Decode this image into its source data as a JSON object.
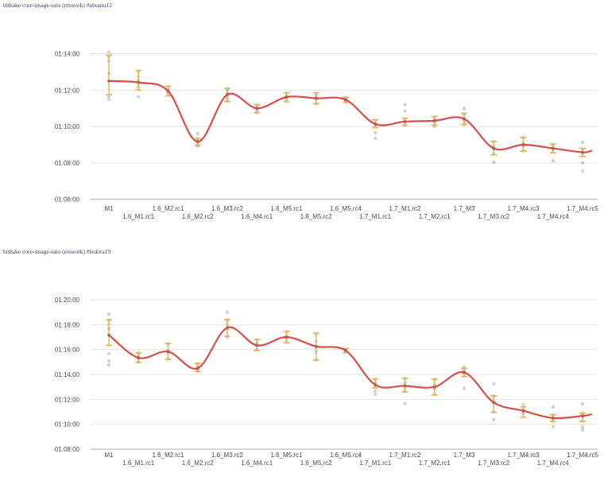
{
  "colors": {
    "trend_line": "#d8453e",
    "error_bar": "#e2b44e",
    "sample_dot": "#909090",
    "mean_dot": "#7f7f7f",
    "gridline": "#e2e2e2",
    "axis_line": "#adadad",
    "tick_text": "#4d4d4d",
    "title_text": "#3d3d5e"
  },
  "chart_data": [
    {
      "type": "scatter",
      "title": "bitbake core-image-sato (rmwork) #ubuntu12",
      "trend": "smoothed mean line",
      "grid": "horizontal",
      "legend_position": "none",
      "xlabel": "",
      "ylabel": "",
      "ylim": [
        "01:06:00",
        "01:14:00"
      ],
      "yticks": [
        "01:14:00",
        "01:12:00",
        "01:10:00",
        "01:08:00",
        "01:06:00"
      ],
      "categories": [
        "M1",
        "1.6_M1.rc1",
        "1.6_M2.rc1",
        "1.6_M2.rc2",
        "1.6_M3.rc2",
        "1.6_M4.rc1",
        "1.6_M5.rc1",
        "1.6_M5.rc2",
        "1.6_M5.rc4",
        "1.7_M1.rc1",
        "1.7_M1.rc2",
        "1.7_M2.rc1",
        "1.7_M3",
        "1.7_M3.rc2",
        "1.7_M4.rc3",
        "1.7_M4.rc4",
        "1.7_M4.rc5"
      ],
      "series": [
        {
          "name": "mean",
          "values": [
            "01:12:30",
            "01:12:25",
            "01:11:57",
            "01:09:10",
            "01:11:45",
            "01:11:00",
            "01:11:37",
            "01:11:33",
            "01:11:28",
            "01:10:08",
            "01:10:16",
            "01:10:19",
            "01:10:25",
            "01:08:48",
            "01:09:00",
            "01:08:48",
            "01:08:35"
          ]
        },
        {
          "name": "error_low",
          "values": [
            "01:11:45",
            "01:12:00",
            "01:11:41",
            "01:08:57",
            "01:11:22",
            "01:10:46",
            "01:11:22",
            "01:11:15",
            "01:11:20",
            "01:09:56",
            "01:10:04",
            "01:10:04",
            "01:10:07",
            "01:08:26",
            "01:08:39",
            "01:08:33",
            "01:08:21"
          ]
        },
        {
          "name": "error_high",
          "values": [
            "01:13:55",
            "01:13:05",
            "01:12:13",
            "01:09:20",
            "01:12:05",
            "01:11:12",
            "01:11:51",
            "01:11:51",
            "01:11:36",
            "01:10:22",
            "01:10:27",
            "01:10:33",
            "01:10:43",
            "01:09:11",
            "01:09:24",
            "01:09:02",
            "01:08:48"
          ]
        },
        {
          "name": "samples",
          "values": [
            [
              "01:14:05",
              "01:13:50",
              "01:13:35",
              "01:12:55",
              "01:11:40",
              "01:11:30"
            ],
            [
              "01:13:00",
              "01:12:45",
              "01:12:30",
              "01:12:10",
              "01:11:38"
            ],
            [
              "01:12:10",
              "01:12:00",
              "01:11:55",
              "01:11:45"
            ],
            [
              "01:09:37",
              "01:09:20",
              "01:09:10",
              "01:09:00",
              "01:08:55"
            ],
            [
              "01:12:05",
              "01:11:55",
              "01:11:45",
              "01:11:35",
              "01:11:25"
            ],
            [
              "01:11:10",
              "01:11:00",
              "01:10:55",
              "01:10:45"
            ],
            [
              "01:11:50",
              "01:11:40",
              "01:11:35",
              "01:11:25"
            ],
            [
              "01:11:50",
              "01:11:40",
              "01:11:30",
              "01:11:15"
            ],
            [
              "01:11:35",
              "01:11:28",
              "01:11:20"
            ],
            [
              "01:10:20",
              "01:10:10",
              "01:10:00",
              "01:09:40",
              "01:09:21"
            ],
            [
              "01:11:12",
              "01:10:51",
              "01:10:25",
              "01:10:15",
              "01:10:05"
            ],
            [
              "01:10:30",
              "01:10:20",
              "01:10:10",
              "01:10:00"
            ],
            [
              "01:10:59",
              "01:10:40",
              "01:10:25",
              "01:10:15",
              "01:10:05"
            ],
            [
              "01:09:10",
              "01:08:55",
              "01:08:45",
              "01:08:30",
              "01:08:02"
            ],
            [
              "01:09:24",
              "01:09:05",
              "01:08:55",
              "01:08:40"
            ],
            [
              "01:09:00",
              "01:08:50",
              "01:08:40",
              "01:08:07"
            ],
            [
              "01:09:08",
              "01:08:45",
              "01:08:30",
              "01:08:00",
              "01:07:34"
            ]
          ]
        }
      ]
    },
    {
      "type": "scatter",
      "title": "bitbake core-image-sato (rmwork) #fedora19",
      "trend": "smoothed mean line",
      "grid": "horizontal",
      "legend_position": "none",
      "xlabel": "",
      "ylabel": "",
      "ylim": [
        "01:08:00",
        "01:20:00"
      ],
      "yticks": [
        "01:20:00",
        "01:18:00",
        "01:16:00",
        "01:14:00",
        "01:12:00",
        "01:10:00",
        "01:08:00"
      ],
      "categories": [
        "M1",
        "1.6_M1.rc1",
        "1.6_M2.rc1",
        "1.6_M2.rc2",
        "1.6_M3.rc2",
        "1.6_M4.rc1",
        "1.6_M5.rc1",
        "1.6_M5.rc2",
        "1.6_M5.rc4",
        "1.7_M1.rc1",
        "1.7_M1.rc2",
        "1.7_M2.rc1",
        "1.7_M3",
        "1.7_M3.rc2",
        "1.7_M4.rc3",
        "1.7_M4.rc4",
        "1.7_M4.rc5"
      ],
      "series": [
        {
          "name": "mean",
          "values": [
            "01:17:10",
            "01:15:20",
            "01:15:50",
            "01:14:30",
            "01:17:45",
            "01:16:20",
            "01:17:00",
            "01:16:15",
            "01:15:55",
            "01:13:10",
            "01:13:05",
            "01:13:00",
            "01:14:10",
            "01:11:45",
            "01:11:05",
            "01:10:30",
            "01:10:40"
          ]
        },
        {
          "name": "error_low",
          "values": [
            "01:16:20",
            "01:14:58",
            "01:15:13",
            "01:14:15",
            "01:17:04",
            "01:15:55",
            "01:16:33",
            "01:15:09",
            "01:15:45",
            "01:12:55",
            "01:12:36",
            "01:12:21",
            "01:13:50",
            "01:10:57",
            "01:10:34",
            "01:10:14",
            "01:10:14"
          ]
        },
        {
          "name": "error_high",
          "values": [
            "01:18:23",
            "01:15:43",
            "01:16:30",
            "01:14:54",
            "01:18:24",
            "01:16:48",
            "01:17:27",
            "01:17:19",
            "01:16:05",
            "01:13:38",
            "01:13:42",
            "01:13:38",
            "01:14:30",
            "01:12:17",
            "01:11:24",
            "01:10:46",
            "01:10:53"
          ]
        },
        {
          "name": "samples",
          "values": [
            [
              "01:18:50",
              "01:18:20",
              "01:18:00",
              "01:17:40",
              "01:15:40",
              "01:15:05",
              "01:14:45"
            ],
            [
              "01:15:45",
              "01:15:30",
              "01:15:20",
              "01:15:00"
            ],
            [
              "01:16:25",
              "01:15:55",
              "01:15:45",
              "01:15:15"
            ],
            [
              "01:14:50",
              "01:14:35",
              "01:14:25",
              "01:14:15"
            ],
            [
              "01:19:00",
              "01:18:20",
              "01:18:00",
              "01:17:40",
              "01:17:00"
            ],
            [
              "01:16:45",
              "01:16:30",
              "01:16:20",
              "01:16:00"
            ],
            [
              "01:17:25",
              "01:17:05",
              "01:16:50",
              "01:16:35"
            ],
            [
              "01:17:15",
              "01:16:40",
              "01:16:10",
              "01:15:50",
              "01:15:10"
            ],
            [
              "01:16:00",
              "01:15:55",
              "01:15:50"
            ],
            [
              "01:13:35",
              "01:13:20",
              "01:13:05",
              "01:12:40",
              "01:12:25"
            ],
            [
              "01:13:40",
              "01:13:20",
              "01:13:00",
              "01:12:40",
              "01:11:40"
            ],
            [
              "01:13:35",
              "01:13:10",
              "01:12:50",
              "01:12:25"
            ],
            [
              "01:14:35",
              "01:14:25",
              "01:14:15",
              "01:14:05",
              "01:12:52"
            ],
            [
              "01:13:15",
              "01:12:15",
              "01:11:45",
              "01:11:00",
              "01:10:22"
            ],
            [
              "01:11:35",
              "01:11:15",
              "01:11:00",
              "01:10:50"
            ],
            [
              "01:11:23",
              "01:10:46",
              "01:10:30",
              "01:10:14",
              "01:09:48"
            ],
            [
              "01:11:38",
              "01:10:53",
              "01:10:40",
              "01:10:14",
              "01:09:48",
              "01:09:34"
            ]
          ]
        }
      ]
    }
  ]
}
